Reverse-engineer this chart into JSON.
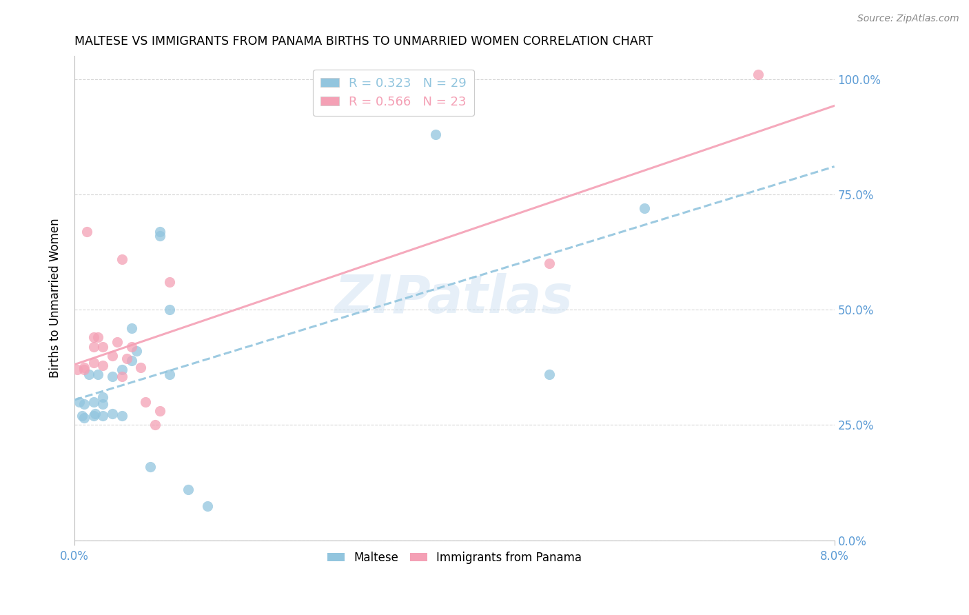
{
  "title": "MALTESE VS IMMIGRANTS FROM PANAMA BIRTHS TO UNMARRIED WOMEN CORRELATION CHART",
  "source": "Source: ZipAtlas.com",
  "ylabel": "Births to Unmarried Women",
  "legend_label1": "Maltese",
  "legend_label2": "Immigrants from Panama",
  "R1": 0.323,
  "N1": 29,
  "R2": 0.566,
  "N2": 23,
  "color_blue": "#92c5de",
  "color_pink": "#f4a0b5",
  "watermark": "ZIPatlas",
  "xlim": [
    0.0,
    0.08
  ],
  "ylim": [
    0.0,
    1.05
  ],
  "ytick_vals": [
    0.0,
    0.25,
    0.5,
    0.75,
    1.0
  ],
  "maltese_x": [
    0.0005,
    0.001,
    0.0008,
    0.001,
    0.002,
    0.002,
    0.0015,
    0.0025,
    0.0022,
    0.003,
    0.003,
    0.003,
    0.004,
    0.004,
    0.005,
    0.005,
    0.006,
    0.006,
    0.0065,
    0.008,
    0.009,
    0.009,
    0.01,
    0.01,
    0.012,
    0.014,
    0.038,
    0.05,
    0.06
  ],
  "maltese_y": [
    0.3,
    0.295,
    0.27,
    0.265,
    0.3,
    0.27,
    0.36,
    0.36,
    0.275,
    0.31,
    0.295,
    0.27,
    0.355,
    0.275,
    0.37,
    0.27,
    0.46,
    0.39,
    0.41,
    0.16,
    0.67,
    0.66,
    0.5,
    0.36,
    0.11,
    0.075,
    0.88,
    0.36,
    0.72
  ],
  "panama_x": [
    0.0003,
    0.001,
    0.001,
    0.0013,
    0.002,
    0.002,
    0.002,
    0.0025,
    0.003,
    0.003,
    0.004,
    0.005,
    0.005,
    0.006,
    0.007,
    0.0075,
    0.0055,
    0.0045,
    0.0085,
    0.009,
    0.01,
    0.05,
    0.072
  ],
  "panama_y": [
    0.37,
    0.37,
    0.375,
    0.67,
    0.44,
    0.42,
    0.385,
    0.44,
    0.38,
    0.42,
    0.4,
    0.355,
    0.61,
    0.42,
    0.375,
    0.3,
    0.395,
    0.43,
    0.25,
    0.28,
    0.56,
    0.6,
    1.01
  ]
}
